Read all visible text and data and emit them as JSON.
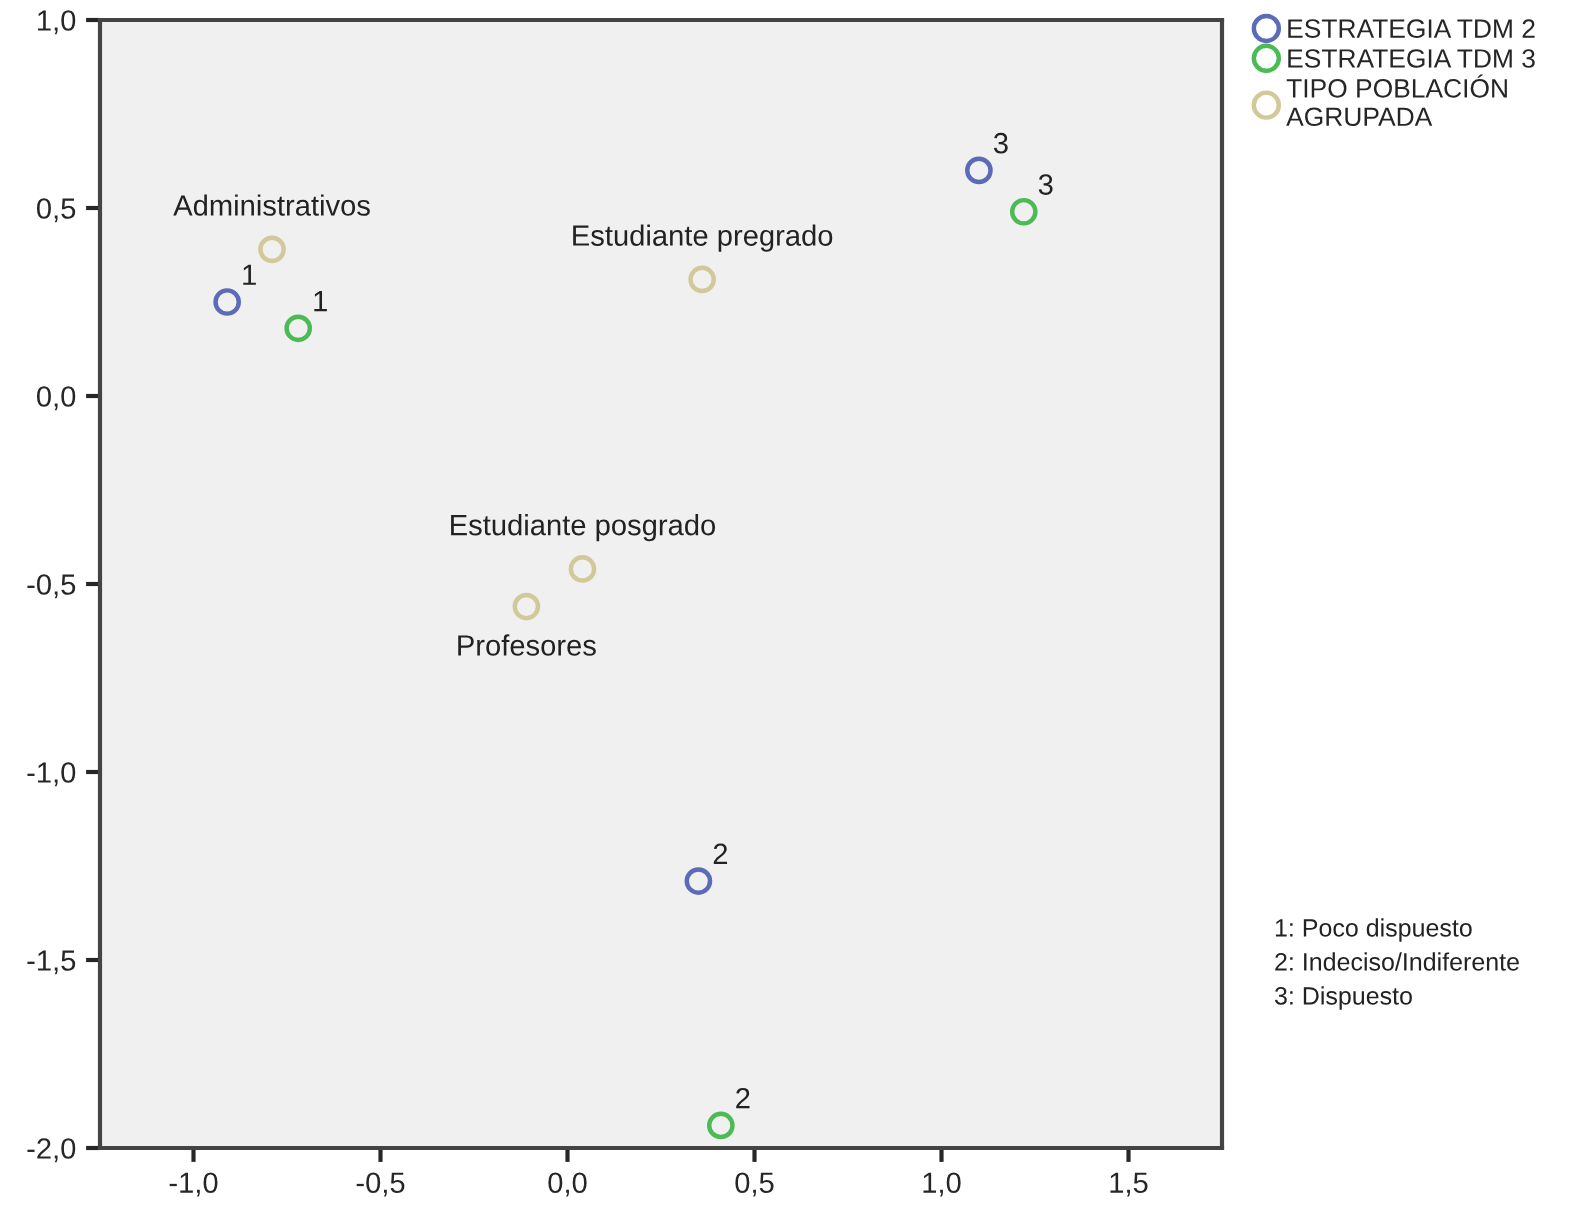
{
  "chart_data": {
    "type": "scatter",
    "marker": "circle",
    "grid": false,
    "legend": "top right",
    "xlim": [
      -1.25,
      1.75
    ],
    "ylim": [
      -2.0,
      1.0
    ],
    "xticks": [
      {
        "value": -1.0,
        "label": "-1,0"
      },
      {
        "value": -0.5,
        "label": "-0,5"
      },
      {
        "value": 0.0,
        "label": "0,0"
      },
      {
        "value": 0.5,
        "label": "0,5"
      },
      {
        "value": 1.0,
        "label": "1,0"
      },
      {
        "value": 1.5,
        "label": "1,5"
      }
    ],
    "yticks": [
      {
        "value": 1.0,
        "label": "1,0"
      },
      {
        "value": 0.5,
        "label": "0,5"
      },
      {
        "value": 0.0,
        "label": "0,0"
      },
      {
        "value": -0.5,
        "label": "-0,5"
      },
      {
        "value": -1.0,
        "label": "-1,0"
      },
      {
        "value": -1.5,
        "label": "-1,5"
      },
      {
        "value": -2.0,
        "label": "-2,0"
      }
    ],
    "series": [
      {
        "name": "ESTRATEGIA TDM 2",
        "color": "#5b6bb8",
        "x": [
          -0.91,
          0.35,
          1.1
        ],
        "values": [
          0.25,
          -1.29,
          0.6
        ]
      },
      {
        "name": "ESTRATEGIA TDM 3",
        "color": "#4cbb55",
        "x": [
          -0.72,
          0.41,
          1.22
        ],
        "values": [
          0.18,
          -1.94,
          0.49
        ]
      },
      {
        "name": "TIPO POBLACIÓN AGRUPADA",
        "color": "#d2c99a",
        "x": [
          -0.79,
          0.36,
          0.04,
          -0.11
        ],
        "values": [
          0.39,
          0.31,
          -0.46,
          -0.56
        ]
      }
    ],
    "annotations": [
      {
        "text": "1",
        "x": -0.91,
        "y": 0.25
      },
      {
        "text": "2",
        "x": 0.35,
        "y": -1.29
      },
      {
        "text": "3",
        "x": 1.1,
        "y": 0.6
      },
      {
        "text": "1",
        "x": -0.72,
        "y": 0.18
      },
      {
        "text": "2",
        "x": 0.41,
        "y": -1.94
      },
      {
        "text": "3",
        "x": 1.22,
        "y": 0.49
      },
      {
        "text": "Administrativos",
        "x": -0.79,
        "y": 0.39
      },
      {
        "text": "Estudiante pregrado",
        "x": 0.36,
        "y": 0.31
      },
      {
        "text": "Estudiante posgrado",
        "x": 0.04,
        "y": -0.46
      },
      {
        "text": "Profesores",
        "x": -0.11,
        "y": -0.56
      },
      "1: Poco dispuesto",
      "2: Indeciso/Indiferente",
      "3: Dispuesto"
    ]
  }
}
